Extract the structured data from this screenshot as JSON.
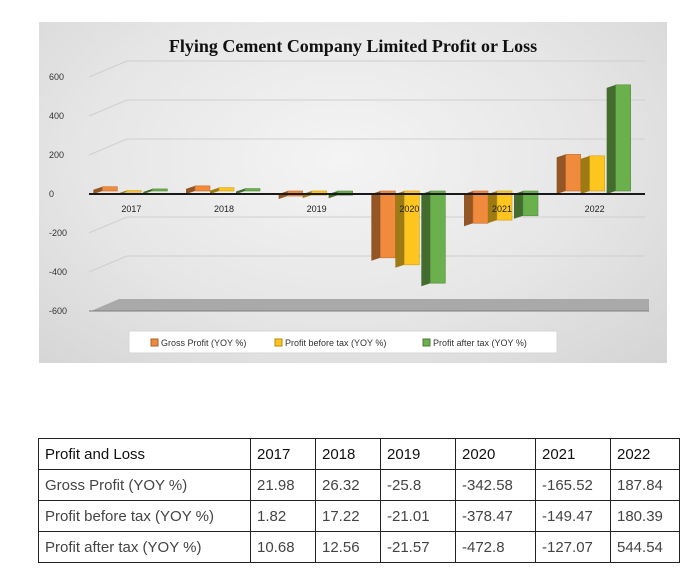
{
  "chart_data": {
    "type": "bar",
    "title": "Flying Cement Company Limited Profit or Loss",
    "categories": [
      "2017",
      "2018",
      "2019",
      "2020",
      "2021",
      "2022"
    ],
    "series": [
      {
        "name": "Gross Profit (YOY %)",
        "color": "#f08a3c",
        "values": [
          21.98,
          26.32,
          -25.8,
          -342.58,
          -165.52,
          187.84
        ]
      },
      {
        "name": "Profit before tax (YOY %)",
        "color": "#ffc51f",
        "values": [
          1.82,
          17.22,
          -21.01,
          -378.47,
          -149.47,
          180.39
        ]
      },
      {
        "name": "Profit after tax (YOY %)",
        "color": "#6ab04c",
        "values": [
          10.68,
          12.56,
          -21.57,
          -472.8,
          -127.07,
          544.54
        ]
      }
    ],
    "ylim": [
      -600,
      600
    ],
    "yticks": [
      "600",
      "400",
      "200",
      "0",
      "-200",
      "-400",
      "-600"
    ],
    "grid": true,
    "legend_position": "bottom",
    "bars_3d": true
  },
  "table": {
    "header": [
      "Profit and Loss",
      "2017",
      "2018",
      "2019",
      "2020",
      "2021",
      "2022"
    ],
    "rows": [
      [
        "Gross Profit (YOY %)",
        "21.98",
        "26.32",
        "-25.8",
        "-342.58",
        "-165.52",
        "187.84"
      ],
      [
        "Profit before tax (YOY %)",
        "1.82",
        "17.22",
        "-21.01",
        "-378.47",
        "-149.47",
        "180.39"
      ],
      [
        "Profit after tax (YOY %)",
        "10.68",
        "12.56",
        "-21.57",
        "-472.8",
        "-127.07",
        "544.54"
      ]
    ]
  }
}
